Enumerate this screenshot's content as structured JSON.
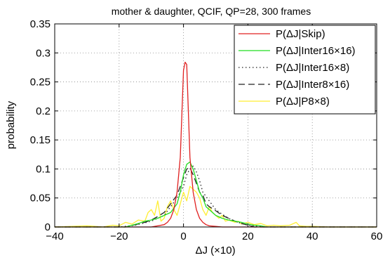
{
  "chart_data": {
    "type": "line",
    "title": "mother & daughter, QCIF, QP=28, 300 frames",
    "xlabel": "ΔJ (×10)",
    "ylabel": "probability",
    "xlim": [
      -40,
      60
    ],
    "ylim": [
      0,
      0.35
    ],
    "xticks": [
      -40,
      -20,
      0,
      20,
      40,
      60
    ],
    "yticks": [
      0,
      0.05,
      0.1,
      0.15,
      0.2,
      0.25,
      0.3,
      0.35
    ],
    "ytick_labels": [
      "0",
      "0.05",
      "0.1",
      "0.15",
      "0.2",
      "0.25",
      "0.3",
      "0.35"
    ],
    "grid": true,
    "legend_position": "top-right",
    "series": [
      {
        "name": "P(ΔJ|Skip)",
        "color": "#e02020",
        "dash": "solid",
        "x": [
          -40,
          -10,
          -8,
          -6,
          -5,
          -4,
          -3,
          -2,
          -1,
          0,
          0.5,
          1,
          1.5,
          2,
          3,
          4,
          5,
          6,
          7,
          8,
          10,
          12,
          15,
          20,
          60
        ],
        "y": [
          0,
          0,
          0.002,
          0.004,
          0.008,
          0.015,
          0.03,
          0.06,
          0.12,
          0.27,
          0.284,
          0.28,
          0.2,
          0.12,
          0.06,
          0.03,
          0.015,
          0.008,
          0.004,
          0.002,
          0.001,
          0,
          0,
          0,
          0
        ]
      },
      {
        "name": "P(ΔJ|Inter16×16)",
        "color": "#22dd22",
        "dash": "solid",
        "x": [
          -40,
          -18,
          -16,
          -14,
          -12,
          -10,
          -8,
          -6,
          -4,
          -2,
          -1,
          0,
          1,
          2,
          3,
          4,
          5,
          6,
          7,
          8,
          10,
          12,
          14,
          16,
          18,
          20,
          22,
          24,
          26,
          60
        ],
        "y": [
          0,
          0,
          0.003,
          0.006,
          0.01,
          0.012,
          0.015,
          0.02,
          0.025,
          0.04,
          0.06,
          0.09,
          0.108,
          0.112,
          0.1,
          0.08,
          0.06,
          0.05,
          0.035,
          0.03,
          0.02,
          0.015,
          0.012,
          0.01,
          0.008,
          0.005,
          0.003,
          0.002,
          0,
          0
        ]
      },
      {
        "name": "P(ΔJ|Inter16×8)",
        "color": "#222222",
        "dash": "dotted",
        "x": [
          -40,
          -20,
          -15,
          -10,
          -8,
          -6,
          -4,
          -2,
          0,
          1,
          2,
          3,
          4,
          5,
          6,
          8,
          10,
          12,
          14,
          16,
          18,
          20,
          22,
          25,
          60
        ],
        "y": [
          0,
          0,
          0.003,
          0.01,
          0.015,
          0.02,
          0.035,
          0.05,
          0.07,
          0.09,
          0.1,
          0.105,
          0.095,
          0.08,
          0.06,
          0.045,
          0.03,
          0.022,
          0.015,
          0.01,
          0.006,
          0.003,
          0.002,
          0,
          0
        ]
      },
      {
        "name": "P(ΔJ|Inter8×16)",
        "color": "#222222",
        "dash": "dashed",
        "x": [
          -40,
          -18,
          -15,
          -12,
          -10,
          -8,
          -6,
          -4,
          -2,
          -1,
          0,
          1,
          2,
          3,
          4,
          5,
          6,
          7,
          8,
          10,
          12,
          14,
          16,
          18,
          20,
          22,
          60
        ],
        "y": [
          0,
          0,
          0.004,
          0.008,
          0.012,
          0.018,
          0.025,
          0.04,
          0.055,
          0.07,
          0.085,
          0.1,
          0.102,
          0.09,
          0.075,
          0.06,
          0.055,
          0.04,
          0.035,
          0.028,
          0.02,
          0.015,
          0.01,
          0.006,
          0.003,
          0,
          0
        ]
      },
      {
        "name": "P(ΔJ|P8×8)",
        "color": "#ffee33",
        "dash": "solid",
        "x": [
          -40,
          -30,
          -25,
          -22,
          -20,
          -18,
          -16,
          -14,
          -12,
          -11,
          -10,
          -9,
          -8,
          -7,
          -6,
          -5,
          -4,
          -3,
          -2,
          -1,
          0,
          1,
          2,
          3,
          4,
          5,
          6,
          7,
          8,
          9,
          10,
          11,
          12,
          13,
          14,
          15,
          16,
          17,
          18,
          20,
          22,
          24,
          26,
          28,
          30,
          33,
          35,
          36,
          38,
          40,
          45,
          60
        ],
        "y": [
          0,
          0.002,
          0,
          0.003,
          0.002,
          0.008,
          0.005,
          0.012,
          0.01,
          0.025,
          0.03,
          0.02,
          0.045,
          0.01,
          0.015,
          0.035,
          0.045,
          0.03,
          0.02,
          0.04,
          0.06,
          0.045,
          0.07,
          0.065,
          0.06,
          0.05,
          0.03,
          0.02,
          0.035,
          0.025,
          0.02,
          0.015,
          0.02,
          0.01,
          0.012,
          0.01,
          0.008,
          0.01,
          0.005,
          0.008,
          0.004,
          0.006,
          0.002,
          0.003,
          0.002,
          0.003,
          0.008,
          0.002,
          0.001,
          0.001,
          0,
          0
        ]
      }
    ]
  }
}
